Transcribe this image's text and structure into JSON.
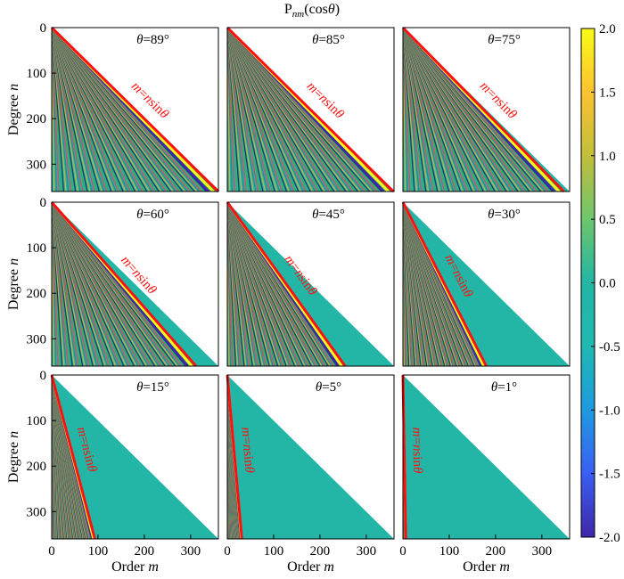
{
  "chart_data": {
    "type": "heatmap",
    "title": "P̄nm(cosθ)",
    "title_parts": {
      "bar": "‾",
      "base": "P",
      "sub": "nm",
      "arg_open": "(cos",
      "arg_var": "θ",
      "arg_close": ")"
    },
    "description": "Normalized associated Legendre functions for nine colatitudes",
    "xlabel": "Order m",
    "ylabel": "Degree n",
    "xlabel_parts": {
      "text": "Order ",
      "var": "m"
    },
    "ylabel_parts": {
      "text": "Degree ",
      "var": "n"
    },
    "x_range": [
      0,
      360
    ],
    "y_range": [
      0,
      360
    ],
    "x_ticks": [
      0,
      100,
      200,
      300
    ],
    "y_ticks": [
      0,
      100,
      200,
      300
    ],
    "colorbar": {
      "range": [
        -2.0,
        2.0
      ],
      "ticks": [
        "2.0",
        "1.5",
        "1.0",
        "0.5",
        "0.0",
        "-0.5",
        "-1.0",
        "-1.5",
        "-2.0"
      ],
      "colors": [
        "#3e26a8",
        "#3a5ff5",
        "#1e9ae0",
        "#1fb9b1",
        "#23b5a5",
        "#6dc66c",
        "#c2be3b",
        "#fbc331",
        "#f9fb15"
      ]
    },
    "boundary_line_color": "#ff1010",
    "boundary_label": {
      "var1": "m",
      "eq": "=",
      "var2": "n",
      "fn": "sin",
      "var3": "θ"
    },
    "panels": [
      {
        "theta": 89,
        "label": "θ=89°"
      },
      {
        "theta": 85,
        "label": "θ=85°"
      },
      {
        "theta": 75,
        "label": "θ=75°"
      },
      {
        "theta": 60,
        "label": "θ=60°"
      },
      {
        "theta": 45,
        "label": "θ=45°"
      },
      {
        "theta": 30,
        "label": "θ=30°"
      },
      {
        "theta": 15,
        "label": "θ=15°"
      },
      {
        "theta": 5,
        "label": "θ=5°"
      },
      {
        "theta": 1,
        "label": "θ=1°"
      }
    ]
  }
}
